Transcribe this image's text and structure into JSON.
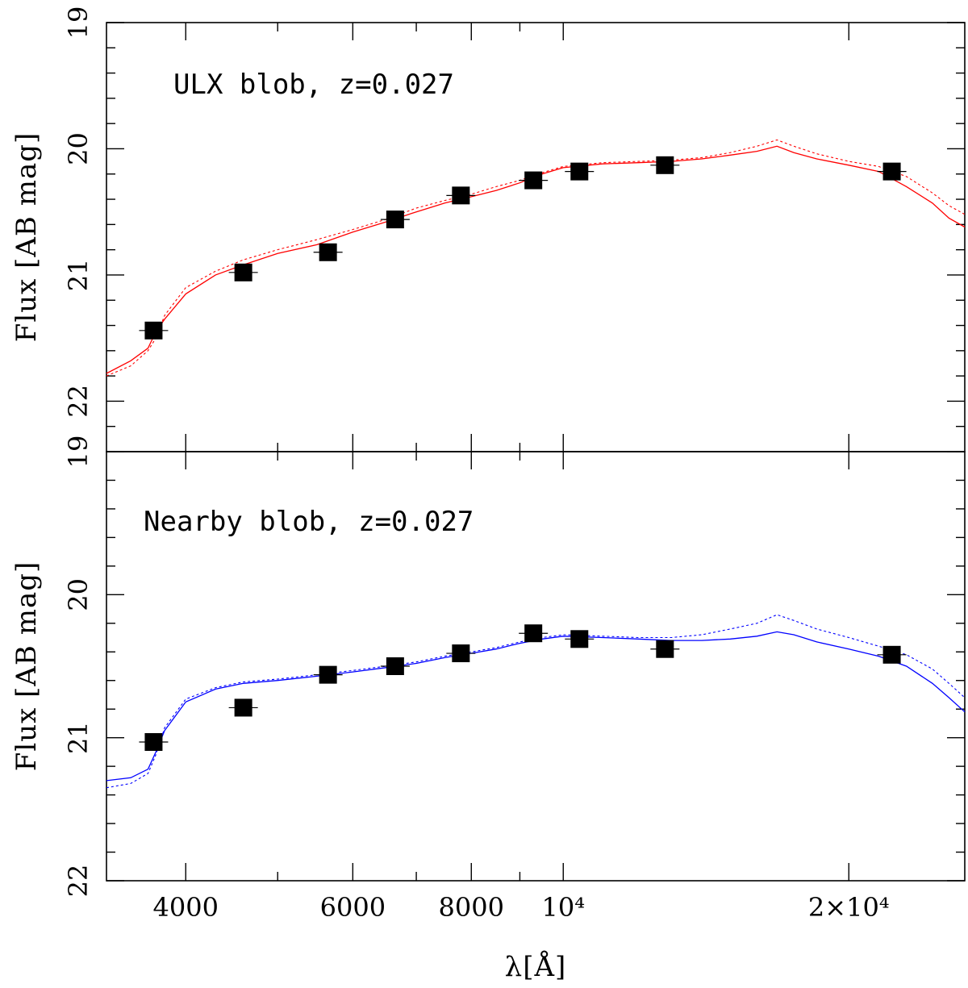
{
  "chart_data": [
    {
      "type": "line",
      "panel": "top",
      "annotation": "ULX blob, z=0.027",
      "ylabel": "Flux [AB mag]",
      "xlabel": "λ[Å]",
      "xscale": "log",
      "xlim": [
        3300,
        26500
      ],
      "ylim": [
        22.4,
        19
      ],
      "y_inverted": true,
      "y_tick_labels": [
        {
          "value": 19,
          "label": "19"
        },
        {
          "value": 20,
          "label": "20"
        },
        {
          "value": 21,
          "label": "21"
        },
        {
          "value": 22,
          "label": "22"
        }
      ],
      "model_color": "#ff0000",
      "series": [
        {
          "name": "photometry",
          "x": [
            3700,
            4600,
            5650,
            6650,
            7800,
            9300,
            10400,
            12800,
            22200
          ],
          "values": [
            21.44,
            20.98,
            20.82,
            20.56,
            20.37,
            20.25,
            20.18,
            20.13,
            20.18
          ]
        },
        {
          "name": "model SED (solid)",
          "x": [
            3300,
            3500,
            3650,
            3720,
            3800,
            4000,
            4300,
            4600,
            5000,
            5500,
            6000,
            6500,
            7000,
            7500,
            8000,
            8500,
            9000,
            9500,
            10000,
            11000,
            12000,
            13000,
            14000,
            15000,
            16000,
            16800,
            17500,
            18500,
            20000,
            21500,
            23000,
            24500,
            25500,
            26500
          ],
          "values": [
            21.78,
            21.68,
            21.58,
            21.45,
            21.35,
            21.15,
            21.0,
            20.92,
            20.83,
            20.76,
            20.66,
            20.58,
            20.5,
            20.43,
            20.38,
            20.33,
            20.27,
            20.2,
            20.15,
            20.12,
            20.11,
            20.1,
            20.08,
            20.05,
            20.02,
            19.98,
            20.03,
            20.08,
            20.13,
            20.18,
            20.3,
            20.43,
            20.55,
            20.62
          ]
        },
        {
          "name": "model SED (dotted)",
          "x": [
            3300,
            3500,
            3650,
            3720,
            3800,
            4000,
            4300,
            4600,
            5000,
            5500,
            6000,
            6500,
            7000,
            7500,
            8000,
            8500,
            9000,
            9500,
            10000,
            11000,
            12000,
            13000,
            14000,
            15000,
            16000,
            16800,
            17500,
            18500,
            20000,
            21500,
            23000,
            24500,
            25500,
            26500
          ],
          "values": [
            21.8,
            21.72,
            21.6,
            21.5,
            21.32,
            21.1,
            20.97,
            20.88,
            20.8,
            20.72,
            20.64,
            20.56,
            20.47,
            20.41,
            20.36,
            20.3,
            20.25,
            20.19,
            20.14,
            20.11,
            20.1,
            20.09,
            20.07,
            20.03,
            19.98,
            19.93,
            19.98,
            20.04,
            20.1,
            20.14,
            20.22,
            20.35,
            20.45,
            20.52
          ]
        }
      ]
    },
    {
      "type": "line",
      "panel": "bottom",
      "annotation": "Nearby blob, z=0.027",
      "ylabel": "Flux [AB mag]",
      "xlabel": "λ[Å]",
      "xscale": "log",
      "xlim": [
        3300,
        26500
      ],
      "ylim": [
        22,
        19
      ],
      "y_inverted": true,
      "y_tick_labels": [
        {
          "value": 19,
          "label": "19"
        },
        {
          "value": 20,
          "label": "20"
        },
        {
          "value": 21,
          "label": "21"
        },
        {
          "value": 22,
          "label": "22"
        }
      ],
      "x_tick_labels": [
        {
          "value": 4000,
          "label": "4000"
        },
        {
          "value": 6000,
          "label": "6000"
        },
        {
          "value": 8000,
          "label": "8000"
        },
        {
          "value": 10000,
          "label": "10⁴"
        },
        {
          "value": 20000,
          "label": "2×10⁴"
        }
      ],
      "model_color": "#0000ff",
      "series": [
        {
          "name": "photometry",
          "x": [
            3700,
            4600,
            5650,
            6650,
            7800,
            9300,
            10400,
            12800,
            22200
          ],
          "values": [
            21.03,
            20.79,
            20.56,
            20.5,
            20.41,
            20.27,
            20.31,
            20.38,
            20.42
          ]
        },
        {
          "name": "model SED (solid)",
          "x": [
            3300,
            3500,
            3650,
            3720,
            3800,
            4000,
            4300,
            4600,
            5000,
            5500,
            6000,
            6500,
            7000,
            7500,
            8000,
            8500,
            9000,
            9500,
            10000,
            11000,
            12000,
            13000,
            14000,
            15000,
            16000,
            16800,
            17500,
            18500,
            20000,
            21500,
            23000,
            24500,
            25500,
            26500
          ],
          "values": [
            21.3,
            21.28,
            21.22,
            21.1,
            20.95,
            20.75,
            20.66,
            20.62,
            20.6,
            20.57,
            20.54,
            20.51,
            20.48,
            20.44,
            20.41,
            20.38,
            20.34,
            20.31,
            20.29,
            20.3,
            20.31,
            20.32,
            20.32,
            20.31,
            20.29,
            20.26,
            20.28,
            20.33,
            20.38,
            20.43,
            20.5,
            20.62,
            20.72,
            20.82
          ]
        },
        {
          "name": "model SED (dotted)",
          "x": [
            3300,
            3500,
            3650,
            3720,
            3800,
            4000,
            4300,
            4600,
            5000,
            5500,
            6000,
            6500,
            7000,
            7500,
            8000,
            8500,
            9000,
            9500,
            10000,
            11000,
            12000,
            13000,
            14000,
            15000,
            16000,
            16800,
            17500,
            18500,
            20000,
            21500,
            23000,
            24500,
            25500,
            26500
          ],
          "values": [
            21.35,
            21.32,
            21.25,
            21.12,
            20.93,
            20.73,
            20.65,
            20.61,
            20.59,
            20.56,
            20.53,
            20.5,
            20.47,
            20.43,
            20.4,
            20.37,
            20.33,
            20.3,
            20.28,
            20.29,
            20.3,
            20.3,
            20.28,
            20.24,
            20.2,
            20.14,
            20.18,
            20.24,
            20.3,
            20.36,
            20.42,
            20.52,
            20.62,
            20.72
          ]
        }
      ]
    }
  ]
}
